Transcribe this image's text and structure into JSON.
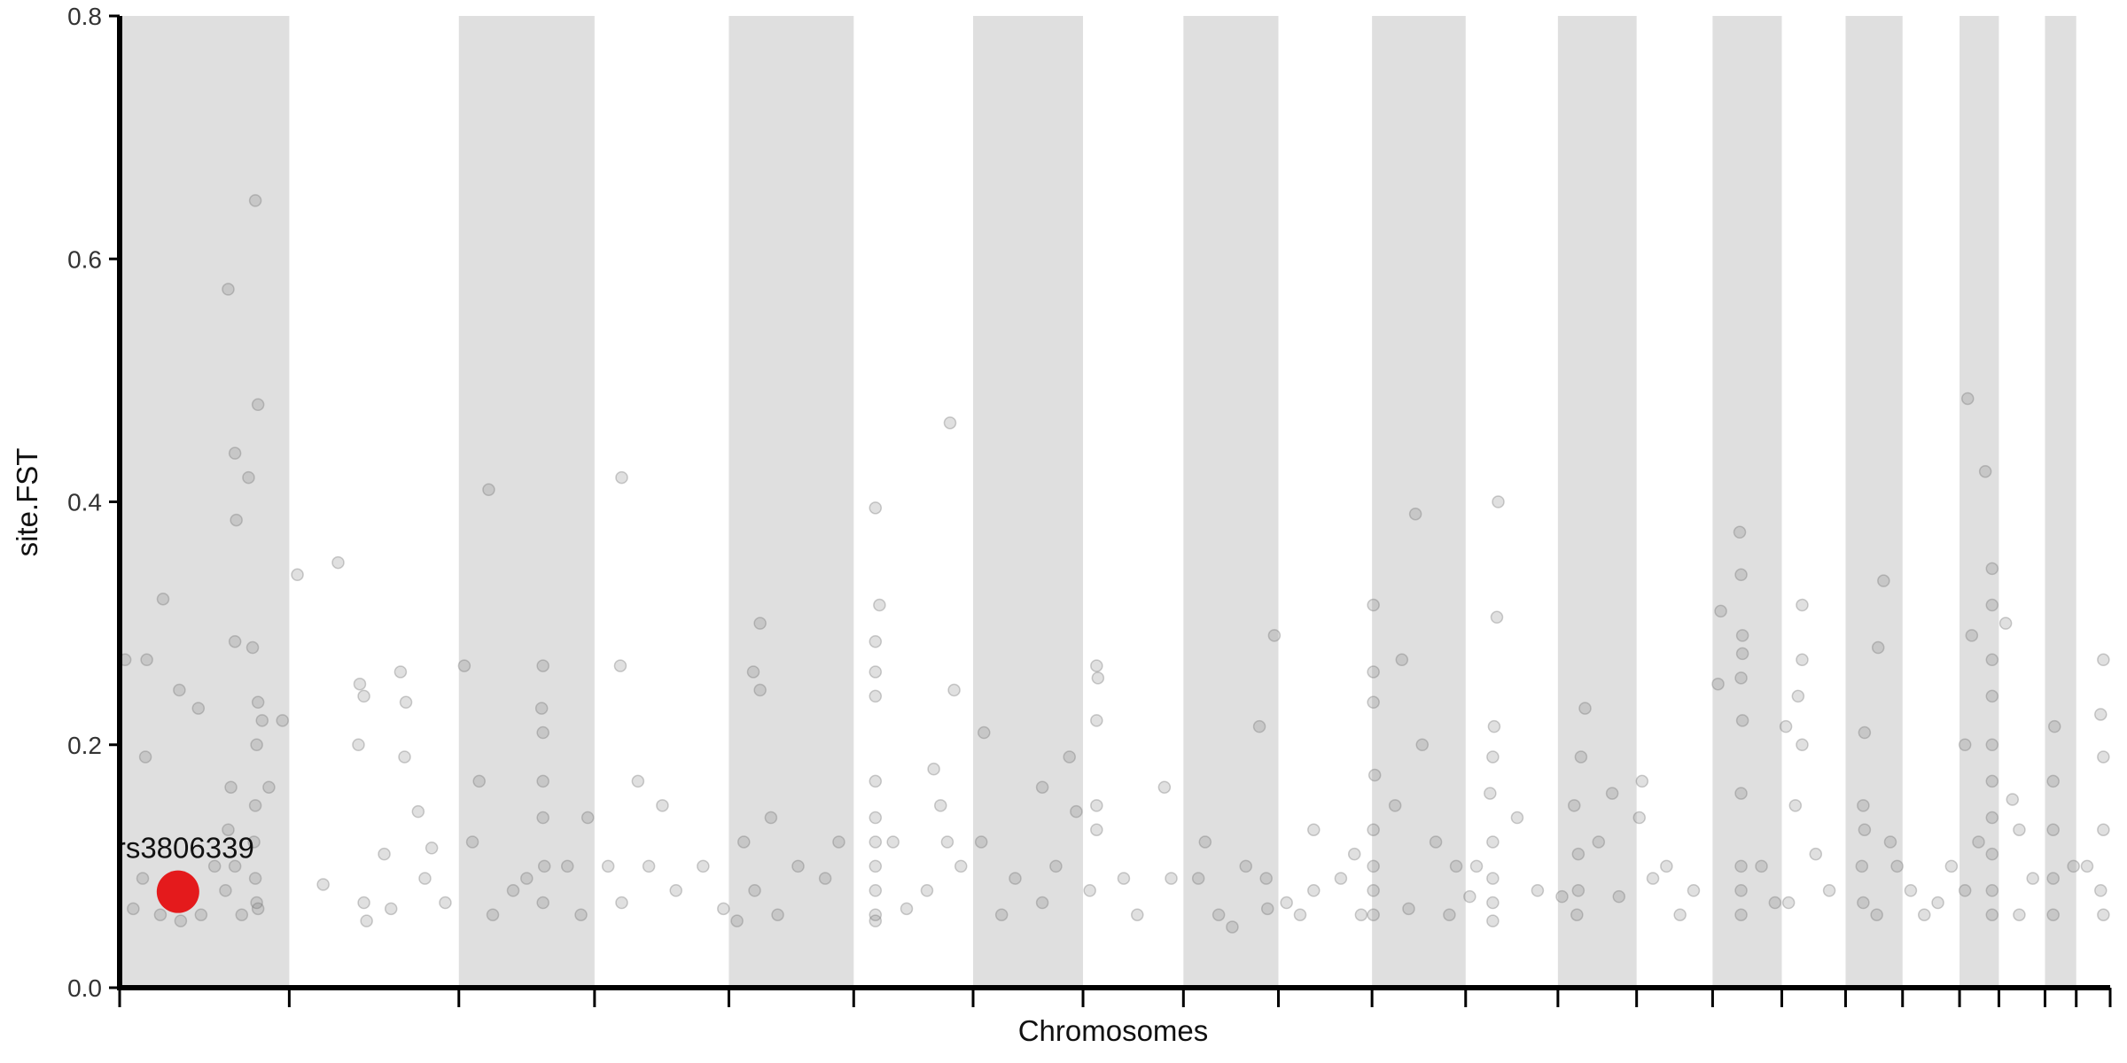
{
  "chart_data": {
    "type": "scatter",
    "xlabel": "Chromosomes",
    "ylabel": "site.FST",
    "xlim": [
      0,
      1467
    ],
    "ylim": [
      0,
      0.8
    ],
    "xticks": [
      0,
      125,
      250,
      350,
      449,
      541,
      629,
      710,
      784,
      854,
      923,
      992,
      1060,
      1118,
      1174,
      1225,
      1272,
      1314,
      1356,
      1385,
      1419,
      1442,
      1467
    ],
    "yticks": [
      {
        "value": 0,
        "label": "0.0"
      },
      0.2,
      0.4,
      0.6,
      0.8
    ],
    "band_color": "#dfdfdf",
    "color": "#707070",
    "x": [
      4,
      17,
      19,
      20,
      32,
      44,
      58,
      80,
      82,
      85,
      86,
      95,
      98,
      100,
      102,
      102,
      101,
      100,
      99,
      100,
      101,
      90,
      85,
      80,
      78,
      105,
      110,
      120,
      50,
      30,
      10,
      60,
      45,
      85,
      70,
      102,
      131,
      161,
      177,
      180,
      176,
      180,
      182,
      207,
      211,
      210,
      220,
      225,
      240,
      195,
      150,
      200,
      230,
      254,
      272,
      265,
      312,
      311,
      312,
      312,
      312,
      313,
      312,
      290,
      260,
      275,
      300,
      345,
      340,
      330,
      370,
      369,
      382,
      400,
      370,
      390,
      410,
      430,
      445,
      360,
      467,
      472,
      472,
      468,
      480,
      460,
      500,
      520,
      530,
      485,
      455,
      557,
      560,
      557,
      557,
      557,
      557,
      557,
      557,
      557,
      557,
      557,
      557,
      580,
      600,
      612,
      615,
      605,
      620,
      595,
      570,
      610,
      637,
      635,
      660,
      680,
      700,
      705,
      680,
      650,
      690,
      720,
      721,
      720,
      720,
      720,
      715,
      750,
      770,
      775,
      740,
      800,
      795,
      810,
      840,
      851,
      845,
      846,
      830,
      820,
      880,
      900,
      880,
      910,
      860,
      870,
      915,
      924,
      924,
      924,
      925,
      924,
      924,
      924,
      924,
      955,
      945,
      960,
      970,
      985,
      950,
      980,
      940,
      1016,
      1015,
      1013,
      1012,
      1010,
      1012,
      1012,
      1012,
      1012,
      1000,
      1030,
      1045,
      995,
      1080,
      1077,
      1072,
      1075,
      1075,
      1074,
      1100,
      1090,
      1105,
      1063,
      1122,
      1120,
      1140,
      1160,
      1150,
      1130,
      1194,
      1195,
      1196,
      1196,
      1195,
      1196,
      1195,
      1195,
      1195,
      1195,
      1180,
      1210,
      1220,
      1178,
      1228,
      1240,
      1240,
      1237,
      1240,
      1235,
      1250,
      1260,
      1230,
      1286,
      1285,
      1286,
      1284,
      1285,
      1295,
      1300,
      1296,
      1305,
      1310,
      1320,
      1340,
      1350,
      1330,
      1362,
      1375,
      1380,
      1380,
      1380,
      1380,
      1380,
      1380,
      1380,
      1380,
      1380,
      1380,
      1365,
      1360,
      1370,
      1360,
      1390,
      1395,
      1400,
      1410,
      1400,
      1426,
      1425,
      1425,
      1425,
      1425,
      1440,
      1462,
      1460,
      1462,
      1462,
      1460,
      1462,
      1450
    ],
    "values": [
      0.27,
      0.09,
      0.19,
      0.27,
      0.32,
      0.245,
      0.23,
      0.575,
      0.165,
      0.44,
      0.385,
      0.42,
      0.28,
      0.648,
      0.48,
      0.235,
      0.2,
      0.15,
      0.12,
      0.09,
      0.07,
      0.06,
      0.1,
      0.13,
      0.08,
      0.22,
      0.165,
      0.22,
      0.07,
      0.06,
      0.065,
      0.06,
      0.055,
      0.285,
      0.1,
      0.065,
      0.34,
      0.35,
      0.25,
      0.24,
      0.2,
      0.07,
      0.055,
      0.26,
      0.235,
      0.19,
      0.145,
      0.09,
      0.07,
      0.11,
      0.085,
      0.065,
      0.115,
      0.265,
      0.41,
      0.17,
      0.265,
      0.23,
      0.21,
      0.17,
      0.14,
      0.1,
      0.07,
      0.08,
      0.12,
      0.06,
      0.09,
      0.14,
      0.06,
      0.1,
      0.42,
      0.265,
      0.17,
      0.15,
      0.07,
      0.1,
      0.08,
      0.1,
      0.065,
      0.1,
      0.26,
      0.245,
      0.3,
      0.08,
      0.14,
      0.12,
      0.1,
      0.09,
      0.12,
      0.06,
      0.055,
      0.395,
      0.315,
      0.285,
      0.26,
      0.24,
      0.17,
      0.14,
      0.12,
      0.1,
      0.08,
      0.06,
      0.055,
      0.065,
      0.18,
      0.465,
      0.245,
      0.15,
      0.1,
      0.08,
      0.12,
      0.12,
      0.21,
      0.12,
      0.09,
      0.165,
      0.19,
      0.145,
      0.07,
      0.06,
      0.1,
      0.265,
      0.255,
      0.22,
      0.15,
      0.13,
      0.08,
      0.06,
      0.165,
      0.09,
      0.09,
      0.12,
      0.09,
      0.06,
      0.215,
      0.29,
      0.09,
      0.065,
      0.1,
      0.05,
      0.08,
      0.09,
      0.13,
      0.11,
      0.07,
      0.06,
      0.06,
      0.315,
      0.26,
      0.235,
      0.175,
      0.13,
      0.1,
      0.08,
      0.06,
      0.39,
      0.27,
      0.2,
      0.12,
      0.1,
      0.065,
      0.06,
      0.15,
      0.4,
      0.305,
      0.215,
      0.19,
      0.16,
      0.12,
      0.09,
      0.07,
      0.055,
      0.1,
      0.14,
      0.08,
      0.075,
      0.23,
      0.19,
      0.15,
      0.11,
      0.08,
      0.06,
      0.16,
      0.12,
      0.075,
      0.075,
      0.17,
      0.14,
      0.1,
      0.08,
      0.06,
      0.09,
      0.375,
      0.34,
      0.29,
      0.275,
      0.255,
      0.22,
      0.16,
      0.1,
      0.08,
      0.06,
      0.31,
      0.1,
      0.07,
      0.25,
      0.215,
      0.315,
      0.27,
      0.24,
      0.2,
      0.15,
      0.11,
      0.08,
      0.07,
      0.21,
      0.15,
      0.13,
      0.1,
      0.07,
      0.06,
      0.335,
      0.28,
      0.12,
      0.1,
      0.08,
      0.07,
      0.1,
      0.06,
      0.485,
      0.425,
      0.345,
      0.315,
      0.27,
      0.24,
      0.2,
      0.17,
      0.14,
      0.11,
      0.08,
      0.06,
      0.29,
      0.2,
      0.12,
      0.08,
      0.3,
      0.155,
      0.13,
      0.09,
      0.06,
      0.215,
      0.17,
      0.13,
      0.09,
      0.06,
      0.1,
      0.27,
      0.225,
      0.19,
      0.13,
      0.08,
      0.06,
      0.1
    ],
    "highlight": {
      "label": "rs3806339",
      "x": 43,
      "y": 0.079,
      "color": "#e41a1c"
    }
  }
}
